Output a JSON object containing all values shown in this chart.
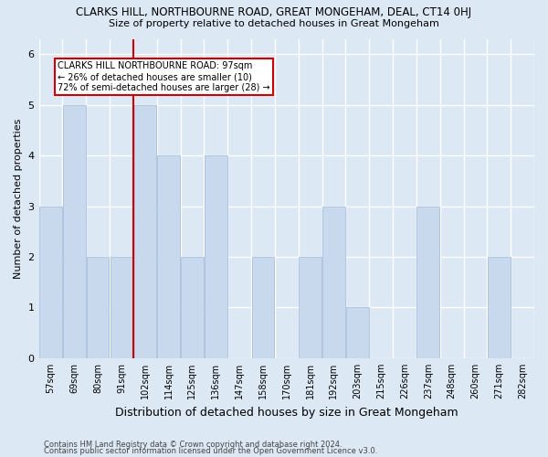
{
  "title": "CLARKS HILL, NORTHBOURNE ROAD, GREAT MONGEHAM, DEAL, CT14 0HJ",
  "subtitle": "Size of property relative to detached houses in Great Mongeham",
  "xlabel": "Distribution of detached houses by size in Great Mongeham",
  "ylabel": "Number of detached properties",
  "bar_labels": [
    "57sqm",
    "69sqm",
    "80sqm",
    "91sqm",
    "102sqm",
    "114sqm",
    "125sqm",
    "136sqm",
    "147sqm",
    "158sqm",
    "170sqm",
    "181sqm",
    "192sqm",
    "203sqm",
    "215sqm",
    "226sqm",
    "237sqm",
    "248sqm",
    "260sqm",
    "271sqm",
    "282sqm"
  ],
  "bar_values": [
    3,
    5,
    2,
    2,
    5,
    4,
    2,
    4,
    0,
    2,
    0,
    2,
    3,
    1,
    0,
    0,
    3,
    0,
    0,
    2,
    0
  ],
  "bar_color": "#c9d9ed",
  "bar_edge_color": "#a0b8d8",
  "ref_line_label": "CLARKS HILL NORTHBOURNE ROAD: 97sqm",
  "annotation_line1": "← 26% of detached houses are smaller (10)",
  "annotation_line2": "72% of semi-detached houses are larger (28) →",
  "ylim": [
    0,
    6.3
  ],
  "yticks": [
    0,
    1,
    2,
    3,
    4,
    5,
    6
  ],
  "footer1": "Contains HM Land Registry data © Crown copyright and database right 2024.",
  "footer2": "Contains public sector information licensed under the Open Government Licence v3.0.",
  "bg_color": "#dde8f5",
  "plot_bg_color": "#dde8f5",
  "grid_color": "#ffffff",
  "ref_line_color": "#cc0000",
  "box_edge_color": "#cc0000",
  "ref_line_index": 3.5
}
